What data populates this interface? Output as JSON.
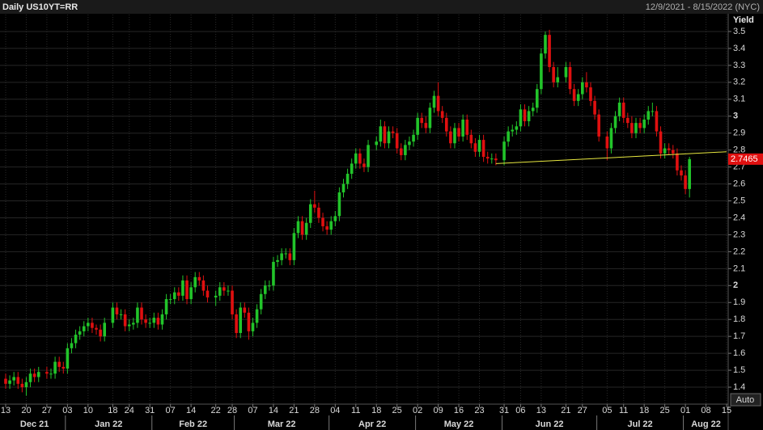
{
  "chart_data": {
    "type": "candlestick",
    "title": "Daily US10YT=RR",
    "subtitle": "12/9/2021 - 8/15/2022 (NYC)",
    "y_label": "Yield",
    "button": "Auto",
    "categories": [
      "13",
      null,
      null,
      null,
      null,
      "20",
      null,
      null,
      null,
      null,
      "27",
      null,
      null,
      null,
      null,
      "03",
      null,
      null,
      null,
      null,
      "10",
      null,
      null,
      null,
      null,
      null,
      "18",
      null,
      null,
      null,
      "24",
      null,
      null,
      null,
      null,
      "31",
      null,
      null,
      null,
      null,
      "07",
      null,
      null,
      null,
      null,
      "14",
      null,
      null,
      null,
      null,
      null,
      "22",
      null,
      null,
      null,
      "28",
      null,
      null,
      null,
      null,
      "07",
      null,
      null,
      null,
      null,
      "14",
      null,
      null,
      null,
      null,
      "21",
      null,
      null,
      null,
      null,
      "28",
      null,
      null,
      null,
      null,
      "04",
      null,
      null,
      null,
      null,
      "11",
      null,
      null,
      null,
      null,
      "18",
      null,
      null,
      null,
      null,
      "25",
      null,
      null,
      null,
      null,
      "02",
      null,
      null,
      null,
      null,
      "09",
      null,
      null,
      null,
      null,
      "16",
      null,
      null,
      null,
      null,
      "23",
      null,
      null,
      null,
      null,
      null,
      "31",
      null,
      null,
      null,
      "06",
      null,
      null,
      null,
      null,
      "13",
      null,
      null,
      null,
      null,
      null,
      "21",
      null,
      null,
      null,
      "27",
      null,
      null,
      null,
      null,
      null,
      "05",
      null,
      null,
      null,
      "11",
      null,
      null,
      null,
      null,
      "18",
      null,
      null,
      null,
      null,
      "25",
      null,
      null,
      null,
      null,
      "01",
      null,
      null,
      null,
      null,
      "08",
      null,
      null,
      null,
      null,
      "15"
    ],
    "months": [
      {
        "label": "Dec 21",
        "index": 0
      },
      {
        "label": "Jan 22",
        "index": 15
      },
      {
        "label": "Feb 22",
        "index": 36
      },
      {
        "label": "Mar 22",
        "index": 56
      },
      {
        "label": "Apr 22",
        "index": 79
      },
      {
        "label": "May 22",
        "index": 100
      },
      {
        "label": "Jun 22",
        "index": 121
      },
      {
        "label": "Jul 22",
        "index": 144
      },
      {
        "label": "Aug 22",
        "index": 165
      }
    ],
    "open": [
      1.45,
      1.42,
      1.44,
      1.46,
      1.42,
      1.4,
      1.43,
      1.48,
      1.46,
      null,
      1.49,
      1.48,
      1.48,
      1.55,
      1.52,
      1.51,
      1.63,
      1.66,
      1.71,
      1.73,
      1.76,
      1.78,
      1.75,
      1.74,
      1.7,
      null,
      1.78,
      1.87,
      1.83,
      1.83,
      1.76,
      1.77,
      1.78,
      1.87,
      1.8,
      1.78,
      1.78,
      1.81,
      1.77,
      1.83,
      1.92,
      1.92,
      1.96,
      1.94,
      2.03,
      1.92,
      1.99,
      2.05,
      2.03,
      1.97,
      null,
      1.93,
      1.94,
      1.99,
      1.97,
      1.97,
      1.83,
      1.72,
      1.87,
      1.84,
      1.73,
      1.78,
      1.86,
      1.95,
      2.0,
      2.0,
      2.14,
      2.15,
      2.19,
      2.19,
      2.15,
      2.31,
      2.38,
      2.3,
      2.37,
      2.48,
      2.46,
      2.4,
      2.35,
      2.33,
      2.38,
      2.41,
      2.55,
      2.6,
      2.66,
      2.72,
      2.78,
      2.72,
      2.7,
      null,
      2.83,
      2.85,
      2.94,
      2.84,
      2.91,
      2.9,
      2.81,
      2.77,
      2.83,
      2.85,
      2.89,
      2.99,
      2.96,
      2.93,
      3.05,
      3.12,
      3.03,
      2.99,
      2.91,
      2.84,
      2.93,
      2.88,
      2.98,
      2.89,
      2.84,
      2.79,
      2.86,
      2.76,
      2.75,
      2.75,
      null,
      2.74,
      2.85,
      2.91,
      2.92,
      2.94,
      3.04,
      2.97,
      3.03,
      3.05,
      3.16,
      3.37,
      3.48,
      3.29,
      3.2,
      null,
      3.23,
      3.29,
      3.16,
      3.09,
      3.13,
      3.2,
      3.17,
      3.09,
      3.01,
      null,
      2.88,
      2.81,
      2.93,
      3.0,
      3.08,
      2.99,
      2.96,
      2.9,
      2.96,
      2.93,
      2.98,
      3.03,
      3.03,
      2.91,
      2.78,
      2.81,
      2.8,
      2.78,
      2.68,
      2.65,
      2.57,
      null,
      null,
      null,
      null,
      null,
      null,
      null,
      null,
      null
    ],
    "high": [
      1.48,
      1.47,
      1.49,
      1.49,
      1.45,
      1.46,
      1.51,
      1.51,
      1.52,
      null,
      1.52,
      1.51,
      1.58,
      1.58,
      1.55,
      1.66,
      1.69,
      1.74,
      1.76,
      1.79,
      1.81,
      1.81,
      1.77,
      1.77,
      1.81,
      null,
      1.9,
      1.9,
      1.86,
      1.86,
      1.8,
      1.81,
      1.9,
      1.9,
      1.83,
      1.81,
      1.84,
      1.84,
      1.86,
      1.95,
      1.95,
      1.99,
      1.99,
      2.06,
      2.06,
      2.02,
      2.08,
      2.08,
      2.06,
      2.0,
      null,
      1.97,
      2.02,
      2.02,
      2.0,
      2.0,
      1.86,
      1.9,
      1.9,
      1.87,
      1.81,
      1.89,
      1.98,
      2.03,
      2.03,
      2.17,
      2.18,
      2.22,
      2.22,
      2.22,
      2.34,
      2.41,
      2.41,
      2.4,
      2.51,
      2.56,
      2.49,
      2.43,
      2.38,
      2.41,
      2.44,
      2.58,
      2.63,
      2.69,
      2.75,
      2.81,
      2.81,
      2.75,
      2.86,
      null,
      2.88,
      2.98,
      2.97,
      2.94,
      2.94,
      2.93,
      2.84,
      2.86,
      2.88,
      2.92,
      3.02,
      3.02,
      3.0,
      3.08,
      3.15,
      3.2,
      3.06,
      3.02,
      2.94,
      2.96,
      2.96,
      3.01,
      3.01,
      2.92,
      2.87,
      2.89,
      2.89,
      2.79,
      2.78,
      2.78,
      null,
      2.88,
      2.94,
      2.95,
      2.97,
      3.07,
      3.07,
      3.06,
      3.08,
      3.19,
      3.4,
      3.5,
      3.51,
      3.32,
      3.29,
      null,
      3.32,
      3.32,
      3.19,
      3.16,
      3.23,
      3.26,
      3.2,
      3.12,
      3.04,
      null,
      2.91,
      2.96,
      3.03,
      3.11,
      3.11,
      3.02,
      3.0,
      2.99,
      2.99,
      3.01,
      3.06,
      3.08,
      3.06,
      2.94,
      2.84,
      2.84,
      2.83,
      2.81,
      2.71,
      2.68,
      2.76,
      null,
      null,
      null,
      null,
      null,
      null,
      null,
      null,
      null
    ],
    "low": [
      1.39,
      1.39,
      1.41,
      1.39,
      1.37,
      1.35,
      1.4,
      1.43,
      1.43,
      null,
      1.45,
      1.45,
      1.45,
      1.49,
      1.48,
      1.48,
      1.6,
      1.63,
      1.68,
      1.7,
      1.73,
      1.72,
      1.71,
      1.67,
      1.67,
      null,
      1.75,
      1.8,
      1.8,
      1.73,
      1.73,
      1.74,
      1.75,
      1.77,
      1.75,
      1.75,
      1.75,
      1.74,
      1.74,
      1.8,
      1.89,
      1.89,
      1.91,
      1.91,
      1.89,
      1.89,
      1.96,
      2.0,
      1.94,
      1.9,
      null,
      1.88,
      1.91,
      1.94,
      1.94,
      1.8,
      1.69,
      1.69,
      1.81,
      1.68,
      1.7,
      1.75,
      1.83,
      1.92,
      1.97,
      1.97,
      2.11,
      2.12,
      2.16,
      2.12,
      2.12,
      2.28,
      2.27,
      2.27,
      2.34,
      2.43,
      2.37,
      2.32,
      2.3,
      2.3,
      2.35,
      2.38,
      2.52,
      2.57,
      2.63,
      2.69,
      2.69,
      2.67,
      2.67,
      null,
      2.8,
      2.82,
      2.81,
      2.81,
      2.87,
      2.78,
      2.74,
      2.74,
      2.8,
      2.82,
      2.86,
      2.93,
      2.9,
      2.9,
      3.02,
      3.0,
      2.96,
      2.88,
      2.81,
      2.81,
      2.85,
      2.85,
      2.86,
      2.81,
      2.76,
      2.76,
      2.73,
      2.72,
      2.72,
      2.71,
      null,
      2.71,
      2.82,
      2.88,
      2.89,
      2.91,
      2.94,
      2.94,
      3.0,
      3.02,
      3.13,
      3.34,
      3.26,
      3.17,
      3.17,
      null,
      3.2,
      3.13,
      3.06,
      3.06,
      3.1,
      3.14,
      3.06,
      2.98,
      2.85,
      null,
      2.74,
      2.78,
      2.9,
      2.97,
      2.96,
      2.93,
      2.87,
      2.87,
      2.9,
      2.9,
      2.95,
      3.0,
      2.88,
      2.75,
      2.75,
      2.77,
      2.75,
      2.65,
      2.62,
      2.54,
      2.52,
      null,
      null,
      null,
      null,
      null,
      null,
      null,
      null,
      null
    ],
    "close": [
      1.42,
      1.44,
      1.46,
      1.42,
      1.4,
      1.43,
      1.48,
      1.46,
      1.49,
      null,
      1.48,
      1.48,
      1.55,
      1.52,
      1.51,
      1.63,
      1.66,
      1.71,
      1.73,
      1.76,
      1.78,
      1.75,
      1.74,
      1.7,
      1.78,
      null,
      1.87,
      1.83,
      1.83,
      1.76,
      1.77,
      1.78,
      1.87,
      1.8,
      1.78,
      1.78,
      1.81,
      1.77,
      1.83,
      1.92,
      1.92,
      1.96,
      1.94,
      2.03,
      1.92,
      1.99,
      2.05,
      2.03,
      1.97,
      1.93,
      null,
      1.94,
      1.99,
      1.97,
      1.97,
      1.83,
      1.72,
      1.87,
      1.84,
      1.73,
      1.78,
      1.86,
      1.95,
      2.0,
      2.0,
      2.14,
      2.15,
      2.19,
      2.19,
      2.15,
      2.31,
      2.38,
      2.3,
      2.37,
      2.48,
      2.46,
      2.4,
      2.35,
      2.33,
      2.38,
      2.41,
      2.55,
      2.6,
      2.66,
      2.72,
      2.78,
      2.72,
      2.7,
      2.83,
      null,
      2.85,
      2.94,
      2.84,
      2.91,
      2.9,
      2.81,
      2.77,
      2.83,
      2.85,
      2.89,
      2.99,
      2.96,
      2.93,
      3.05,
      3.12,
      3.03,
      2.99,
      2.91,
      2.84,
      2.93,
      2.88,
      2.98,
      2.89,
      2.84,
      2.79,
      2.86,
      2.76,
      2.75,
      2.75,
      2.74,
      null,
      2.85,
      2.91,
      2.92,
      2.94,
      3.04,
      2.97,
      3.03,
      3.05,
      3.16,
      3.37,
      3.48,
      3.29,
      3.2,
      3.23,
      null,
      3.29,
      3.16,
      3.09,
      3.13,
      3.2,
      3.17,
      3.09,
      3.01,
      2.88,
      null,
      2.81,
      2.93,
      3.0,
      3.08,
      2.99,
      2.96,
      2.9,
      2.96,
      2.93,
      2.98,
      3.03,
      3.03,
      2.91,
      2.78,
      2.81,
      2.8,
      2.78,
      2.68,
      2.65,
      2.57,
      2.7465,
      null,
      null,
      null,
      null,
      null,
      null,
      null,
      null,
      null
    ],
    "up_color": "#22c42a",
    "down_color": "#e01010",
    "last_value": 2.7465,
    "last_value_color": "#e01010",
    "trendline": {
      "color": "#e8e840",
      "x": [
        119,
        175
      ],
      "values": [
        2.72,
        2.79
      ]
    },
    "ylim": [
      1.3,
      3.6
    ],
    "yticks": [
      1.4,
      1.5,
      1.6,
      1.7,
      1.8,
      1.9,
      2,
      2.1,
      2.2,
      2.3,
      2.4,
      2.5,
      2.6,
      2.7,
      2.8,
      2.9,
      3,
      3.1,
      3.2,
      3.3,
      3.4,
      3.5
    ],
    "grid": true
  }
}
